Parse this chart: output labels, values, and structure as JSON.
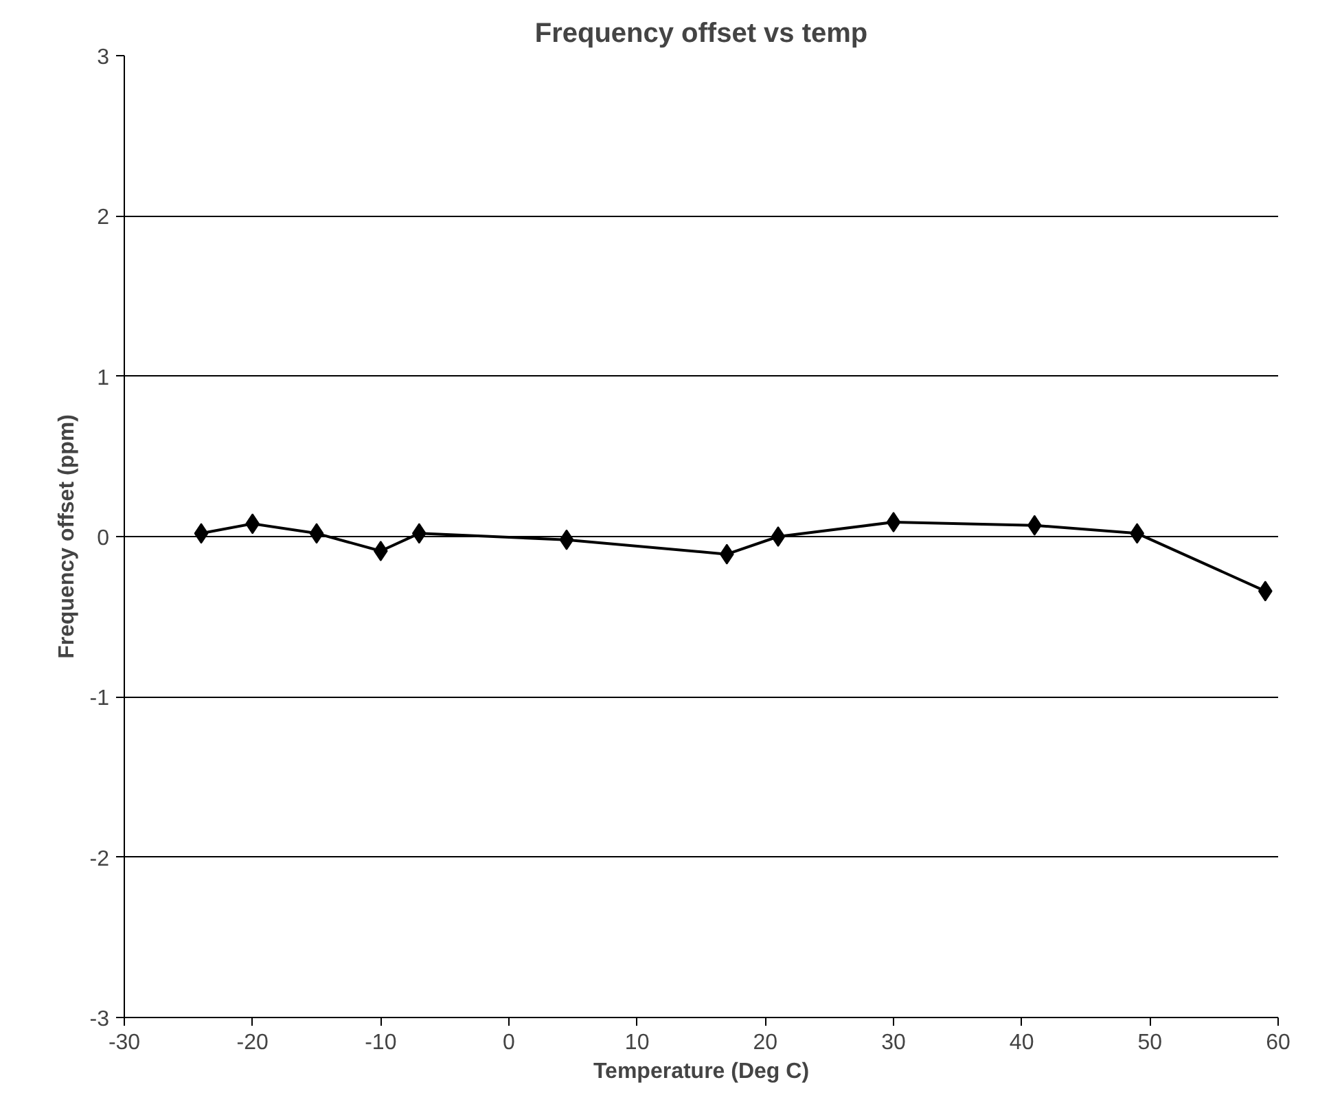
{
  "chart_data": {
    "type": "line",
    "title": "Frequency offset vs temp",
    "xlabel": "Temperature (Deg C)",
    "ylabel": "Frequency offset (ppm)",
    "x": [
      -24,
      -20,
      -15,
      -10,
      -7,
      4.5,
      17,
      21,
      30,
      41,
      49,
      59
    ],
    "series": [
      {
        "color": "#000000",
        "values": [
          0.02,
          0.08,
          0.02,
          -0.09,
          0.02,
          -0.02,
          -0.11,
          0,
          0.09,
          0.07,
          0.02,
          -0.34
        ]
      }
    ],
    "xlim": [
      -30,
      60
    ],
    "xticks": [
      -30,
      -20,
      -10,
      0,
      10,
      20,
      30,
      40,
      50,
      60
    ],
    "ylim": [
      -3,
      3
    ],
    "yticks": [
      -3,
      -2,
      -1,
      0,
      1,
      2,
      3
    ],
    "grid": "y",
    "marker": "diamond",
    "line_style": "solid"
  }
}
